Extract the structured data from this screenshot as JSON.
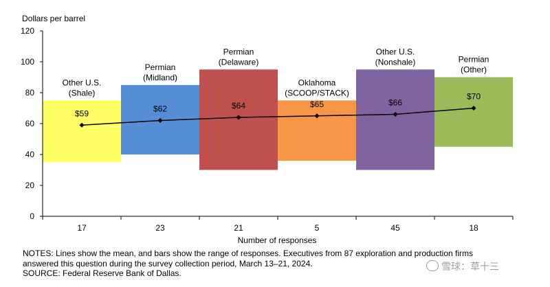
{
  "chart_data": {
    "type": "bar",
    "ylabel": "Dollars per barrel",
    "xlabel": "Number of responses",
    "ylim": [
      0,
      120
    ],
    "yticks": [
      0,
      20,
      40,
      60,
      80,
      100,
      120
    ],
    "categories": [
      "17",
      "23",
      "21",
      "5",
      "45",
      "18"
    ],
    "series": [
      {
        "bars": [
          {
            "name_lines": [
              "Other U.S.",
              "(Shale)"
            ],
            "low": 35,
            "high": 75,
            "mean": 59,
            "mean_label": "$59",
            "color": "#ffff66"
          },
          {
            "name_lines": [
              "Permian",
              "(Midland)"
            ],
            "low": 40,
            "high": 85,
            "mean": 62,
            "mean_label": "$62",
            "color": "#558ed5"
          },
          {
            "name_lines": [
              "Permian",
              "(Delaware)"
            ],
            "low": 30,
            "high": 95,
            "mean": 64,
            "mean_label": "$64",
            "color": "#c0504d"
          },
          {
            "name_lines": [
              "Oklahoma",
              "(SCOOP/STACK)"
            ],
            "low": 36,
            "high": 75,
            "mean": 65,
            "mean_label": "$65",
            "color": "#f79646"
          },
          {
            "name_lines": [
              "Other U.S.",
              "(Nonshale)"
            ],
            "low": 30,
            "high": 95,
            "mean": 66,
            "mean_label": "$66",
            "color": "#8064a2"
          },
          {
            "name_lines": [
              "Permian",
              "(Other)"
            ],
            "low": 45,
            "high": 90,
            "mean": 70,
            "mean_label": "$70",
            "color": "#9bbb59"
          }
        ]
      }
    ]
  },
  "notes": {
    "line1": "NOTES: Lines show the mean, and bars show the range of responses. Executives from 87 exploration and production firms",
    "line2": "answered this question during the survey collection period, March 13–21, 2024.",
    "line3": "SOURCE: Federal Reserve Bank of Dallas."
  },
  "watermark": {
    "text": "雪球：草十三"
  }
}
